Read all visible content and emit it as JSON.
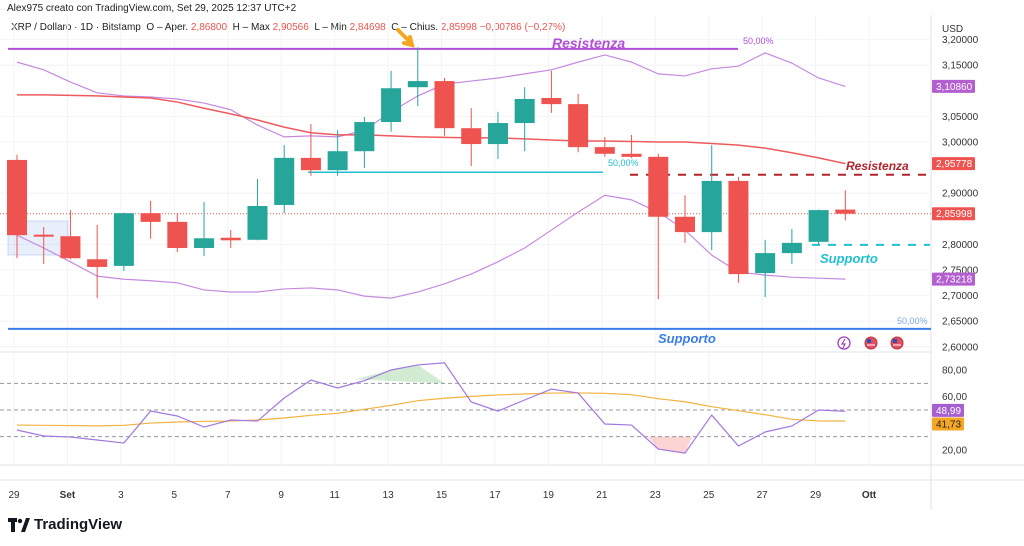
{
  "header": {
    "credit": "Alex975 creato con TradingView.com, Set 29, 2025 12:37 UTC+2",
    "symbol": "XRP / Dollaro · 1D · Bitstamp",
    "open_label": "O – Aper.",
    "open": "2,86800",
    "high_label": "H – Max",
    "high": "2,90566",
    "low_label": "L – Min",
    "low": "2,84698",
    "close_label": "C – Chius.",
    "close": "2,85998",
    "change": "−0,00786 (−0,27%)"
  },
  "logo": "TradingView",
  "colors": {
    "up": "#26a69a",
    "down": "#ef5350",
    "bands": "#c58ae0",
    "ma": "#ef5a5c",
    "resistance": "#b150d6",
    "support": "#3b7de8",
    "cyan": "#22bfd0",
    "dashed_res": "#b2232e",
    "rsi": "#a177e0",
    "signal": "#f3b23e"
  },
  "chart_data": [
    {
      "type": "candlestick",
      "currency": "USD",
      "x_tick_labels": [
        "29",
        "Set",
        "3",
        "5",
        "7",
        "9",
        "11",
        "13",
        "15",
        "17",
        "19",
        "21",
        "23",
        "25",
        "27",
        "29",
        "Ott"
      ],
      "y_tick_labels": [
        "3,20000",
        "3,15000",
        "3,05000",
        "3,00000",
        "2,90000",
        "2,80000",
        "2,75000",
        "2,70000",
        "2,65000",
        "2,60000"
      ],
      "y_ticks": [
        3.2,
        3.15,
        3.05,
        3.0,
        2.9,
        2.8,
        2.75,
        2.7,
        2.65,
        2.6
      ],
      "ylim": [
        2.59,
        3.21
      ],
      "dates": [
        "Aug 29",
        "Aug 30",
        "Aug 31",
        "Sep 1",
        "Sep 2",
        "Sep 3",
        "Sep 4",
        "Sep 5",
        "Sep 6",
        "Sep 7",
        "Sep 8",
        "Sep 9",
        "Sep 10",
        "Sep 11",
        "Sep 12",
        "Sep 13",
        "Sep 14",
        "Sep 15",
        "Sep 16",
        "Sep 17",
        "Sep 18",
        "Sep 19",
        "Sep 20",
        "Sep 21",
        "Sep 22",
        "Sep 23",
        "Sep 24",
        "Sep 25",
        "Sep 26",
        "Sep 27",
        "Sep 28",
        "Sep 29"
      ],
      "ohlc": [
        [
          2.965,
          2.975,
          2.773,
          2.818
        ],
        [
          2.819,
          2.834,
          2.762,
          2.817
        ],
        [
          2.816,
          2.867,
          2.771,
          2.773
        ],
        [
          2.771,
          2.838,
          2.695,
          2.756
        ],
        [
          2.758,
          2.862,
          2.748,
          2.861
        ],
        [
          2.861,
          2.885,
          2.811,
          2.844
        ],
        [
          2.844,
          2.861,
          2.785,
          2.793
        ],
        [
          2.793,
          2.883,
          2.777,
          2.812
        ],
        [
          2.813,
          2.828,
          2.793,
          2.808
        ],
        [
          2.809,
          2.928,
          2.808,
          2.875
        ],
        [
          2.877,
          2.994,
          2.861,
          2.969
        ],
        [
          2.969,
          3.035,
          2.934,
          2.945
        ],
        [
          2.945,
          3.023,
          2.934,
          2.982
        ],
        [
          2.982,
          3.049,
          2.949,
          3.039
        ],
        [
          3.039,
          3.139,
          3.02,
          3.105
        ],
        [
          3.107,
          3.185,
          3.07,
          3.119
        ],
        [
          3.119,
          3.125,
          3.012,
          3.027
        ],
        [
          3.027,
          3.066,
          2.953,
          2.996
        ],
        [
          2.996,
          3.059,
          2.967,
          3.037
        ],
        [
          3.037,
          3.107,
          2.982,
          3.084
        ],
        [
          3.086,
          3.139,
          3.057,
          3.074
        ],
        [
          3.074,
          3.094,
          2.98,
          2.99
        ],
        [
          2.99,
          3.01,
          2.971,
          2.977
        ],
        [
          2.977,
          3.014,
          2.969,
          2.971
        ],
        [
          2.971,
          2.977,
          2.693,
          2.854
        ],
        [
          2.854,
          2.896,
          2.803,
          2.824
        ],
        [
          2.824,
          2.994,
          2.789,
          2.924
        ],
        [
          2.924,
          2.932,
          2.725,
          2.742
        ],
        [
          2.744,
          2.809,
          2.697,
          2.783
        ],
        [
          2.783,
          2.83,
          2.762,
          2.803
        ],
        [
          2.805,
          2.868,
          2.799,
          2.867
        ],
        [
          2.868,
          2.90566,
          2.84698,
          2.85998
        ]
      ],
      "moving_average": [
        3.092,
        3.092,
        3.091,
        3.09,
        3.088,
        3.086,
        3.078,
        3.066,
        3.055,
        3.043,
        3.029,
        3.018,
        3.014,
        3.014,
        3.012,
        3.01,
        3.009,
        3.008,
        3.008,
        3.006,
        3.004,
        3.002,
        3.002,
        3.001,
        3.0,
        3.0,
        2.997,
        2.994,
        2.988,
        2.979,
        2.969,
        2.95778
      ],
      "bollinger_upper": [
        3.156,
        3.141,
        3.117,
        3.096,
        3.09,
        3.088,
        3.084,
        3.076,
        3.063,
        3.033,
        3.01,
        3.012,
        3.01,
        3.023,
        3.059,
        3.09,
        3.113,
        3.119,
        3.125,
        3.133,
        3.141,
        3.156,
        3.17,
        3.156,
        3.133,
        3.129,
        3.143,
        3.148,
        3.174,
        3.154,
        3.125,
        3.1086
      ],
      "bollinger_lower": [
        2.818,
        2.793,
        2.766,
        2.738,
        2.732,
        2.729,
        2.725,
        2.711,
        2.707,
        2.707,
        2.713,
        2.715,
        2.711,
        2.699,
        2.695,
        2.707,
        2.723,
        2.742,
        2.766,
        2.793,
        2.828,
        2.863,
        2.896,
        2.887,
        2.863,
        2.828,
        2.779,
        2.746,
        2.74,
        2.736,
        2.734,
        2.73218
      ],
      "price_labels": [
        {
          "text": "3,10860",
          "value": 3.1086,
          "color": "#b45fd0"
        },
        {
          "text": "2,95778",
          "value": 2.95778,
          "color": "#ef5350"
        },
        {
          "text": "2,85998",
          "value": 2.85998,
          "color": "#ef5350"
        },
        {
          "text": "2,73218",
          "value": 2.73218,
          "color": "#b45fd0"
        }
      ],
      "annotations": {
        "resistance_top": {
          "text": "Resistenza",
          "value": 3.182,
          "pct": "50,00%"
        },
        "cyan_level": {
          "value": 2.941,
          "pct": "50,00%"
        },
        "resistance_dashed": {
          "text": "Resistenza",
          "value": 2.936
        },
        "support_dashed": {
          "text": "Supporto",
          "value": 2.799
        },
        "support_bottom": {
          "text": "Supporto",
          "value": 2.635,
          "pct": "50,00%"
        }
      }
    },
    {
      "type": "line",
      "y_tick_labels": [
        "80,00",
        "60,00",
        "20,00"
      ],
      "y_ticks": [
        80,
        60,
        20
      ],
      "bands": [
        70,
        50,
        30
      ],
      "rsi": [
        35.0,
        30.5,
        29.7,
        27.5,
        25.2,
        49.2,
        45.5,
        37.2,
        42.5,
        41.7,
        59.0,
        72.5,
        66.5,
        72.0,
        80.0,
        83.8,
        85.3,
        56.0,
        49.2,
        57.5,
        65.7,
        62.7,
        39.5,
        38.7,
        20.7,
        17.7,
        46.2,
        23.0,
        33.5,
        38.0,
        50.0,
        48.99
      ],
      "signal": [
        38.7,
        38.5,
        38.3,
        38.1,
        38.5,
        40.2,
        41.0,
        41.5,
        41.7,
        42.5,
        44.0,
        46.0,
        47.5,
        50.5,
        53.5,
        57.0,
        58.8,
        60.2,
        61.3,
        62.0,
        62.7,
        62.8,
        62.5,
        61.5,
        58.5,
        56.2,
        52.5,
        49.5,
        46.5,
        43.0,
        41.8,
        41.73
      ],
      "value_labels": [
        {
          "text": "48,99",
          "color": "#a65fd0"
        },
        {
          "text": "41,73",
          "color": "#f5a623"
        }
      ]
    }
  ]
}
